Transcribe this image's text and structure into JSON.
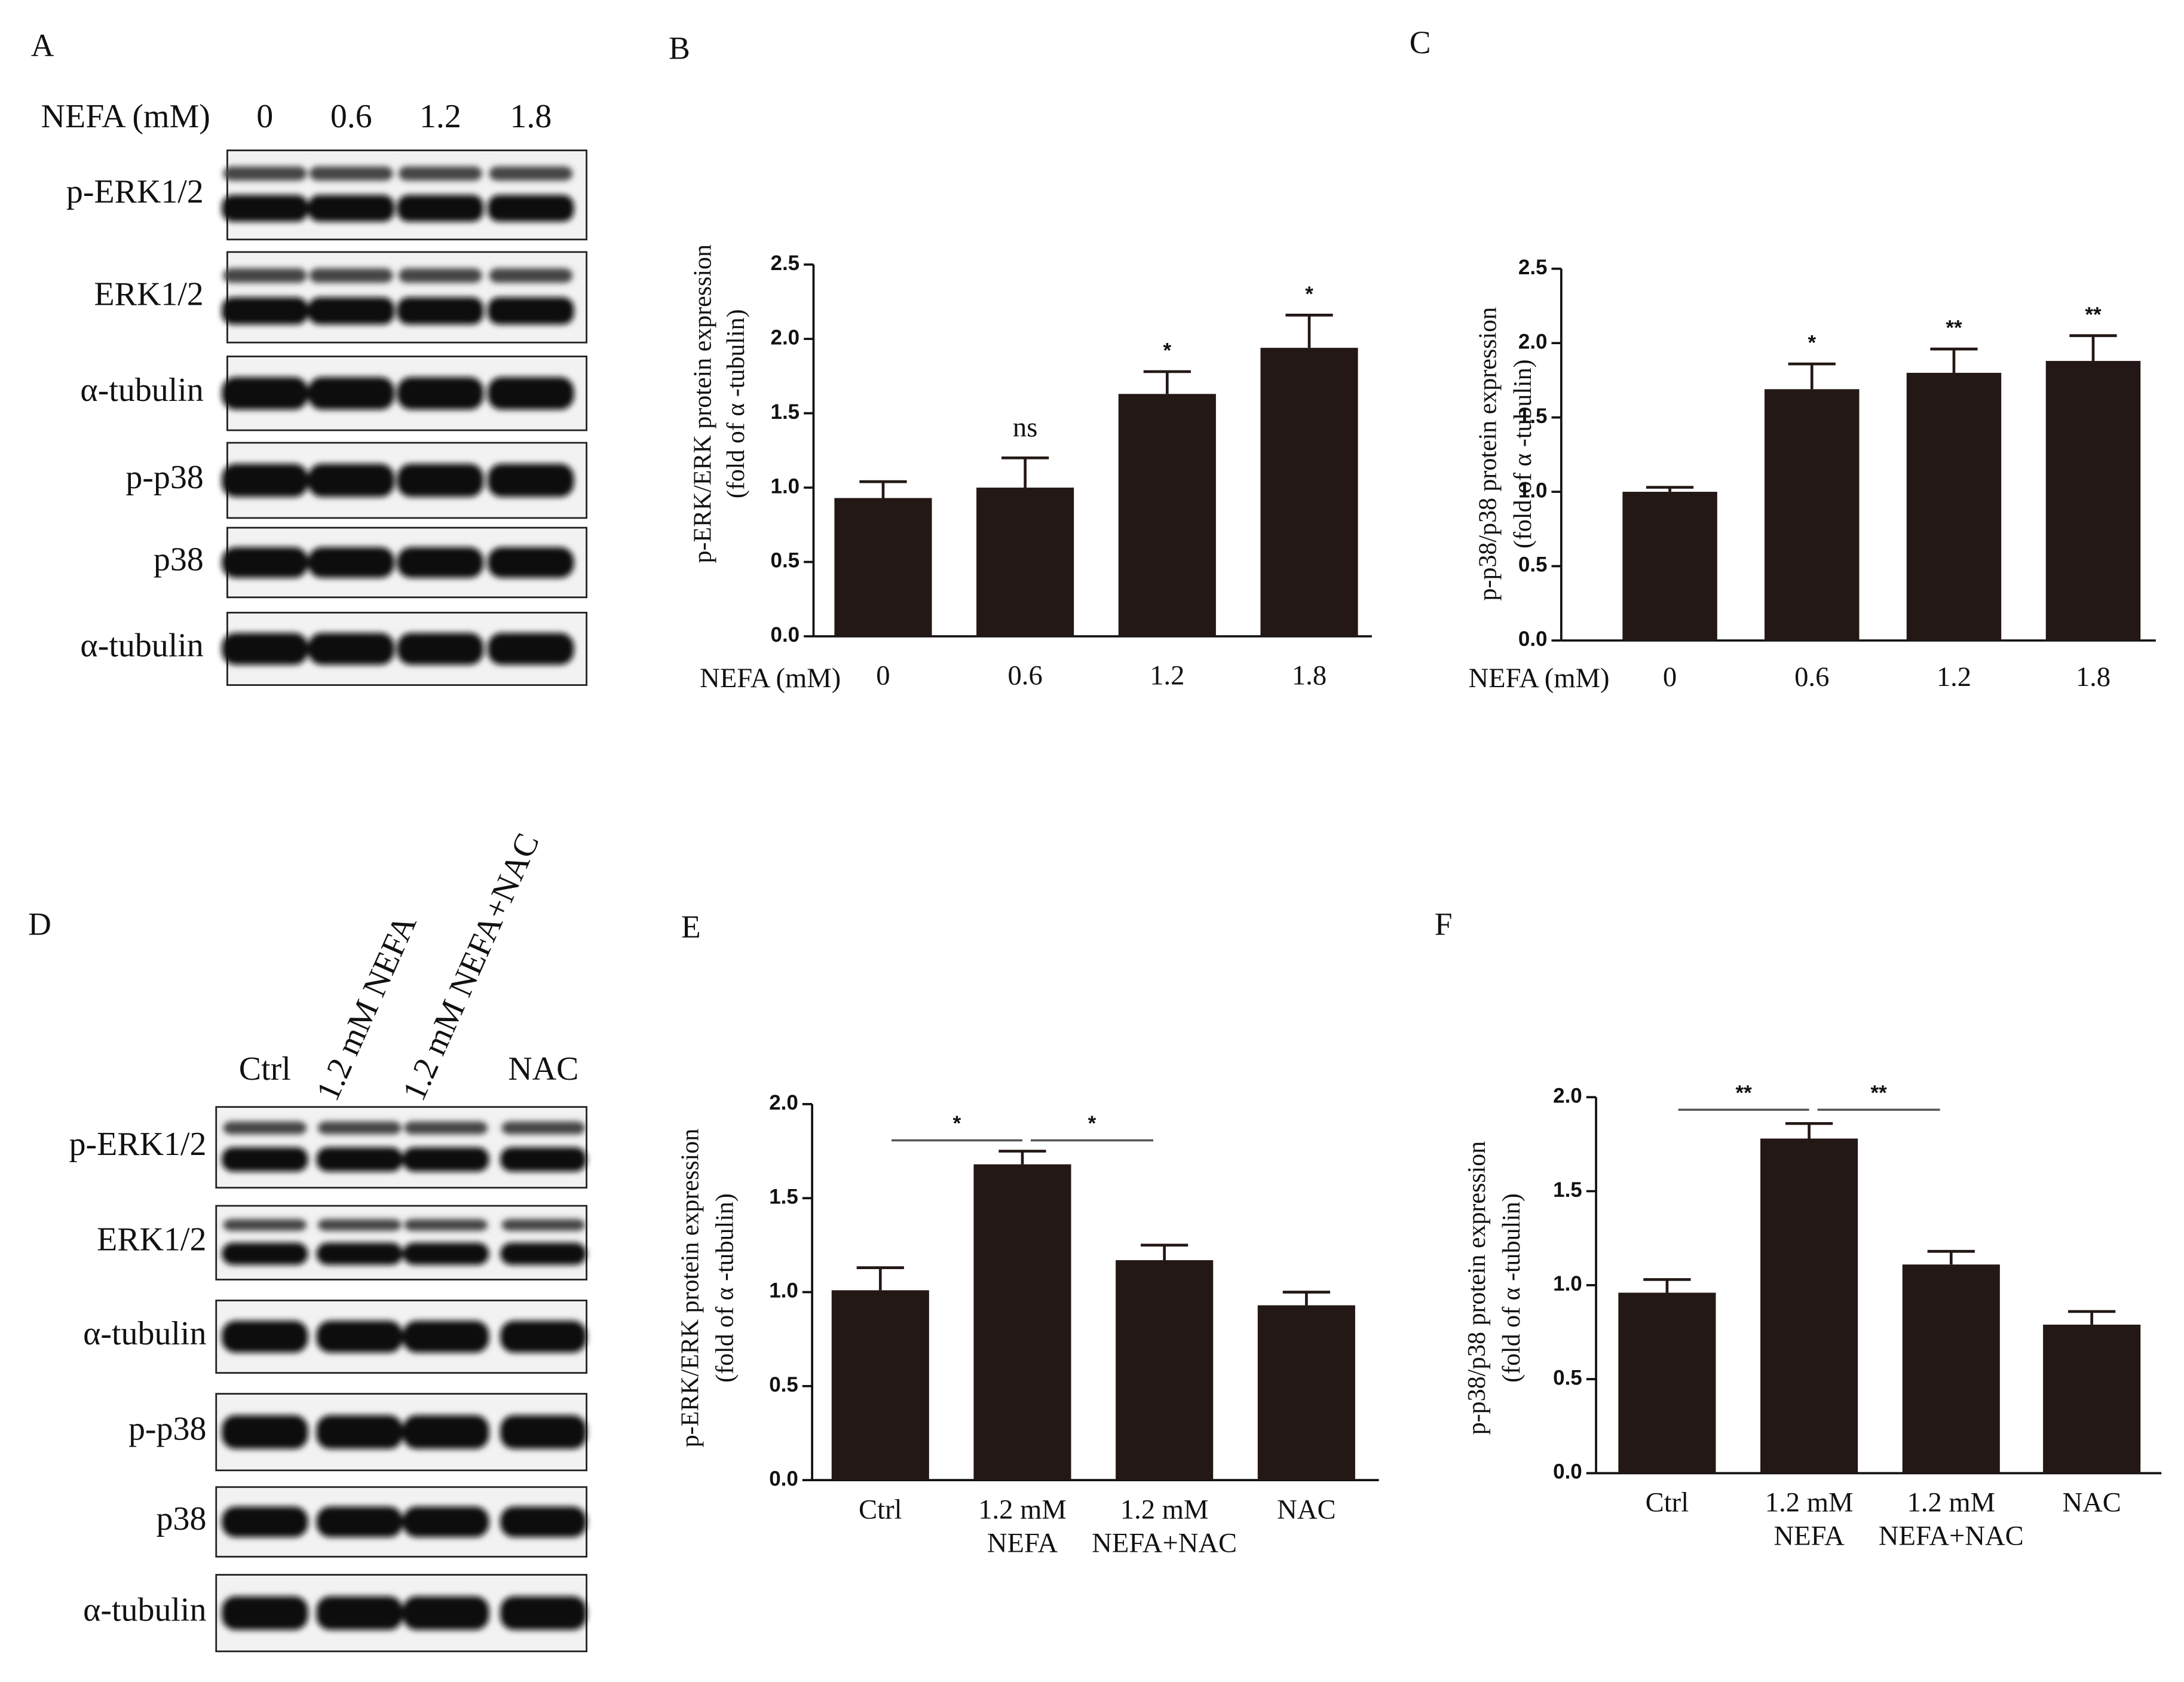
{
  "panels": {
    "letters": [
      "A",
      "B",
      "C",
      "D",
      "E",
      "F"
    ],
    "A": {
      "header": "NEFA (mM)",
      "lanes": [
        "0",
        "0.6",
        "1.2",
        "1.8"
      ],
      "rows": [
        "p-ERK1/2",
        "ERK1/2",
        "α-tubulin",
        "p-p38",
        "p38",
        "α-tubulin"
      ]
    },
    "D": {
      "lanes": [
        "Ctrl",
        "1.2 mM NEFA",
        "1.2 mM NEFA+NAC",
        "NAC"
      ],
      "rows": [
        "p-ERK1/2",
        "ERK1/2",
        "α-tubulin",
        "p-p38",
        "p38",
        "α-tubulin"
      ]
    }
  },
  "chart_data": [
    {
      "type": "bar",
      "x_label": "NEFA (mM)",
      "y_label": [
        "p-ERK/ERK protein expression",
        "(fold of α -tubulin)"
      ],
      "categories": [
        [
          "0"
        ],
        [
          "0.6"
        ],
        [
          "1.2"
        ],
        [
          "1.8"
        ]
      ],
      "values": [
        0.93,
        1.0,
        1.63,
        1.94
      ],
      "errors": [
        0.11,
        0.2,
        0.15,
        0.22
      ],
      "annotations": [
        null,
        "ns",
        "*",
        "*"
      ],
      "color": "#231815",
      "ylim": [
        0,
        2.5
      ],
      "yticks": [
        {
          "value": 0,
          "label": "0.0"
        },
        0.5,
        {
          "value": 1,
          "label": "1.0"
        },
        1.5,
        {
          "value": 2,
          "label": "2.0"
        },
        2.5
      ]
    },
    {
      "type": "bar",
      "x_label": "NEFA (mM)",
      "y_label": [
        "p-p38/p38 protein expression",
        "(fold of α -tubulin)"
      ],
      "categories": [
        [
          "0"
        ],
        [
          "0.6"
        ],
        [
          "1.2"
        ],
        [
          "1.8"
        ]
      ],
      "values": [
        1.0,
        1.69,
        1.8,
        1.88
      ],
      "errors": [
        0.03,
        0.17,
        0.16,
        0.17
      ],
      "annotations": [
        null,
        "*",
        "**",
        "**"
      ],
      "color": "#231815",
      "ylim": [
        0,
        2.5
      ],
      "yticks": [
        {
          "value": 0,
          "label": "0.0"
        },
        0.5,
        {
          "value": 1,
          "label": "1.0"
        },
        1.5,
        {
          "value": 2,
          "label": "2.0"
        },
        2.5
      ]
    },
    {
      "type": "bar",
      "y_label": [
        "p-ERK/ERK protein expression",
        "(fold of α -tubulin)"
      ],
      "categories": [
        [
          "Ctrl"
        ],
        [
          "1.2 mM",
          "NEFA"
        ],
        [
          "1.2 mM",
          "NEFA+NAC"
        ],
        [
          "NAC"
        ]
      ],
      "values": [
        1.01,
        1.68,
        1.17,
        0.93
      ],
      "errors": [
        0.12,
        0.07,
        0.08,
        0.07
      ],
      "comparisons": [
        {
          "from": 0,
          "to": 1,
          "label": "*"
        },
        {
          "from": 1,
          "to": 2,
          "label": "*"
        }
      ],
      "color": "#231815",
      "ylim": [
        0,
        2
      ],
      "yticks": [
        {
          "value": 0,
          "label": "0.0"
        },
        0.5,
        {
          "value": 1,
          "label": "1.0"
        },
        1.5,
        {
          "value": 2,
          "label": "2.0"
        }
      ]
    },
    {
      "type": "bar",
      "y_label": [
        "p-p38/p38 protein expression",
        "(fold of α -tubulin)"
      ],
      "categories": [
        [
          "Ctrl"
        ],
        [
          "1.2 mM",
          "NEFA"
        ],
        [
          "1.2 mM",
          "NEFA+NAC"
        ],
        [
          "NAC"
        ]
      ],
      "values": [
        0.96,
        1.78,
        1.11,
        0.79
      ],
      "errors": [
        0.07,
        0.08,
        0.07,
        0.07
      ],
      "comparisons": [
        {
          "from": 0,
          "to": 1,
          "label": "**"
        },
        {
          "from": 1,
          "to": 2,
          "label": "**"
        }
      ],
      "color": "#231815",
      "ylim": [
        0,
        2
      ],
      "yticks": [
        {
          "value": 0,
          "label": "0.0"
        },
        0.5,
        {
          "value": 1,
          "label": "1.0"
        },
        1.5,
        {
          "value": 2,
          "label": "2.0"
        }
      ]
    }
  ]
}
